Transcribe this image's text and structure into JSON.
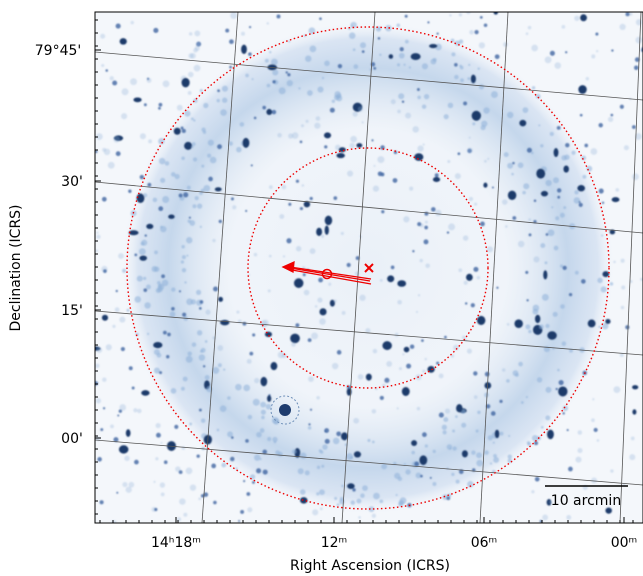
{
  "figure": {
    "x_axis_label": "Right Ascension (ICRS)",
    "y_axis_label": "Declination (ICRS)",
    "x_tick_labels": [
      "14ʰ18ᵐ",
      "12ᵐ",
      "06ᵐ",
      "00ᵐ"
    ],
    "y_tick_labels": [
      "79°45'",
      "30'",
      "15'",
      "00'"
    ],
    "scale_bar_label": "10 arcmin"
  }
}
